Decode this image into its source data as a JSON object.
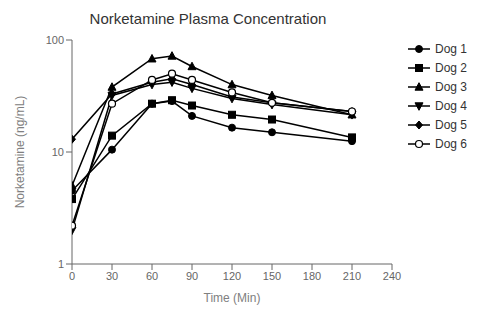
{
  "chart_data": {
    "type": "line",
    "title": "Norketamine Plasma Concentration",
    "xlabel": "Time (Min)",
    "ylabel": "Norketamine (ng/mL)",
    "x": [
      0,
      30,
      60,
      75,
      90,
      120,
      150,
      210
    ],
    "xlim": [
      0,
      240
    ],
    "xticks": [
      0,
      30,
      60,
      90,
      120,
      150,
      180,
      210,
      240
    ],
    "ylim": [
      1,
      100
    ],
    "yticks": [
      1,
      10,
      100
    ],
    "log": "y",
    "grid": false,
    "legend": "right",
    "series": [
      {
        "name": "Dog 1",
        "color": "#000000",
        "marker": "circle",
        "values": [
          4.5,
          10.5,
          27.0,
          28.5,
          21.0,
          16.5,
          15.0,
          12.5
        ]
      },
      {
        "name": "Dog 2",
        "color": "#000000",
        "marker": "square",
        "values": [
          3.8,
          14.0,
          27.0,
          29.0,
          26.0,
          21.5,
          19.5,
          13.5
        ]
      },
      {
        "name": "Dog 3",
        "color": "#000000",
        "marker": "triangle-up",
        "values": [
          5.0,
          38.0,
          68.0,
          72.0,
          58.0,
          40.0,
          32.0,
          21.5
        ]
      },
      {
        "name": "Dog 4",
        "color": "#000000",
        "marker": "triangle-down",
        "values": [
          2.0,
          32.0,
          40.0,
          42.0,
          37.0,
          30.0,
          26.5,
          21.5
        ]
      },
      {
        "name": "Dog 5",
        "color": "#000000",
        "marker": "diamond",
        "values": [
          13.0,
          33.0,
          42.0,
          45.0,
          40.0,
          31.0,
          27.5,
          23.0
        ]
      },
      {
        "name": "Dog 6",
        "color": "#000000",
        "marker": "open-circle",
        "values": [
          2.2,
          27.0,
          44.0,
          50.0,
          44.0,
          34.0,
          27.5,
          23.0
        ]
      }
    ]
  }
}
